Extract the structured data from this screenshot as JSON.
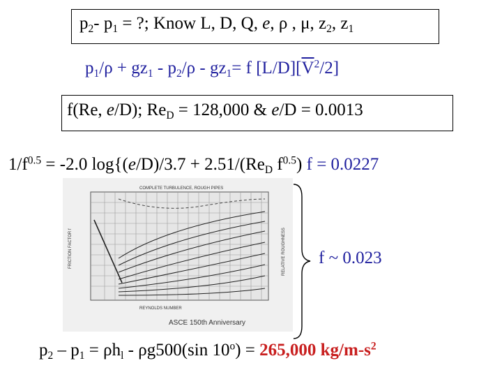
{
  "line1": {
    "p2": "p",
    "s2": "2",
    "minus": "- p",
    "s1": "1",
    "rest": " = ?; Know L, D, Q, ",
    "e": "e",
    "comma": ", ",
    "rho": "ρ",
    "comma2": " , ",
    "mu": "μ",
    "z": ", z",
    "sz2": "2",
    "z1": ", z",
    "sz1": "1"
  },
  "line2": {
    "a": "p",
    "a_sub": "1",
    "b": "/ρ + gz",
    "b_sub": "1",
    "c": " - ",
    "d": "p",
    "d_sub": "2",
    "e": "/ρ - gz",
    "e_sub": "1",
    "f": "= ",
    "g": "f",
    "h": " [L/D][",
    "v": "V",
    "v_sup": "2",
    "i": "/2]"
  },
  "line3": {
    "a": "f(Re, ",
    "e": "e",
    "b": "/D); Re",
    "sub": "D",
    "c": " = 128,000 & ",
    "e2": "e",
    "d": "/D = 0.0013"
  },
  "line4": {
    "a": "1/f",
    "sup1": "0.5",
    "b": " = -2.0 log{(",
    "e": "e",
    "c": "/D)/3.7 + 2.51/(Re",
    "sub": "D",
    "d": " f",
    "sup2": "0.5",
    "f": ")",
    "g": "  f = 0.0227"
  },
  "moody": {
    "caption": "ASCE 150th Anniversary",
    "x_label": "REYNOLDS NUMBER",
    "y_label": "FRICTION FACTOR f",
    "right_label": "RELATIVE ROUGHNESS",
    "top_label": "COMPLETE TURBULENCE, ROUGH PIPES"
  },
  "brace_label": "f ~ 0.023",
  "line5": {
    "a": "p",
    "s2": "2",
    "b": " – p",
    "s1": "1",
    "c": " = ρh",
    "sl": "l",
    "d": " - ρg500(sin 10",
    "deg": "o",
    "e": ") = ",
    "result": "265,000 kg/m-s",
    "result_sup": "2"
  },
  "colors": {
    "blue": "#1f1f9e",
    "red": "#c81e1e"
  }
}
